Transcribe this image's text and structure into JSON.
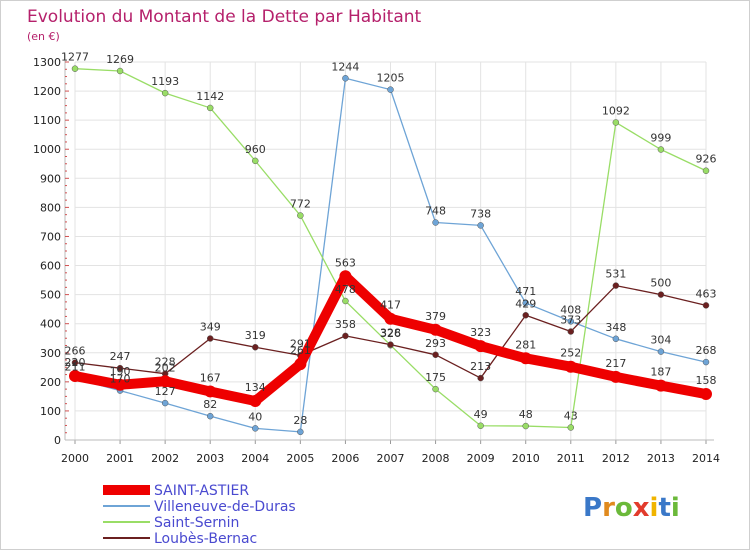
{
  "chart_data": {
    "type": "line",
    "title": "Evolution du Montant de la Dette par Habitant",
    "unit_label": "(en €)",
    "x": [
      "2000",
      "2001",
      "2002",
      "2003",
      "2004",
      "2005",
      "2006",
      "2007",
      "2008",
      "2009",
      "2010",
      "2011",
      "2012",
      "2013",
      "2014"
    ],
    "ylim": [
      0,
      1300
    ],
    "yticks": [
      0,
      100,
      200,
      300,
      400,
      500,
      600,
      700,
      800,
      900,
      1000,
      1100,
      1200,
      1300
    ],
    "grid": true,
    "legend_position": "bottom-left",
    "series": [
      {
        "name": "SAINT-ASTIER",
        "color": "#ee0000",
        "values": [
          220,
          190,
          202,
          167,
          134,
          261,
          563,
          417,
          379,
          323,
          281,
          252,
          217,
          187,
          158
        ]
      },
      {
        "name": "Villeneuve-de-Duras",
        "color": "#6ea4d6",
        "values": [
          211,
          170,
          127,
          82,
          40,
          28,
          1244,
          1205,
          748,
          738,
          471,
          408,
          348,
          304,
          268
        ]
      },
      {
        "name": "Saint-Sernin",
        "color": "#99dd66",
        "values": [
          1277,
          1269,
          1193,
          1142,
          960,
          772,
          478,
          326,
          175,
          49,
          48,
          43,
          1092,
          999,
          926
        ]
      },
      {
        "name": "Loubès-Bernac",
        "color": "#6b2020",
        "values": [
          266,
          247,
          228,
          349,
          319,
          291,
          358,
          328,
          293,
          213,
          429,
          373,
          531,
          500,
          463
        ]
      }
    ]
  },
  "brand": {
    "logo_text": "Proxiti"
  }
}
